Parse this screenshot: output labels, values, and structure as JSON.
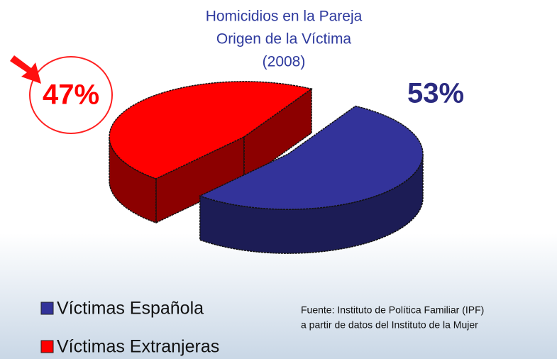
{
  "chart_data": {
    "type": "pie",
    "title": [
      "Homicidios en la Pareja",
      "Origen de la Víctima",
      "(2008)"
    ],
    "categories": [
      "Víctimas Española",
      "Víctimas Extranjeras"
    ],
    "values": [
      53,
      47
    ],
    "value_labels": [
      "53%",
      "47%"
    ],
    "colors": [
      "#33339a",
      "#ff0000"
    ],
    "source": [
      "Fuente: Instituto de Política Familiar (IPF)",
      "a partir de datos del Instituto de la Mujer"
    ]
  }
}
